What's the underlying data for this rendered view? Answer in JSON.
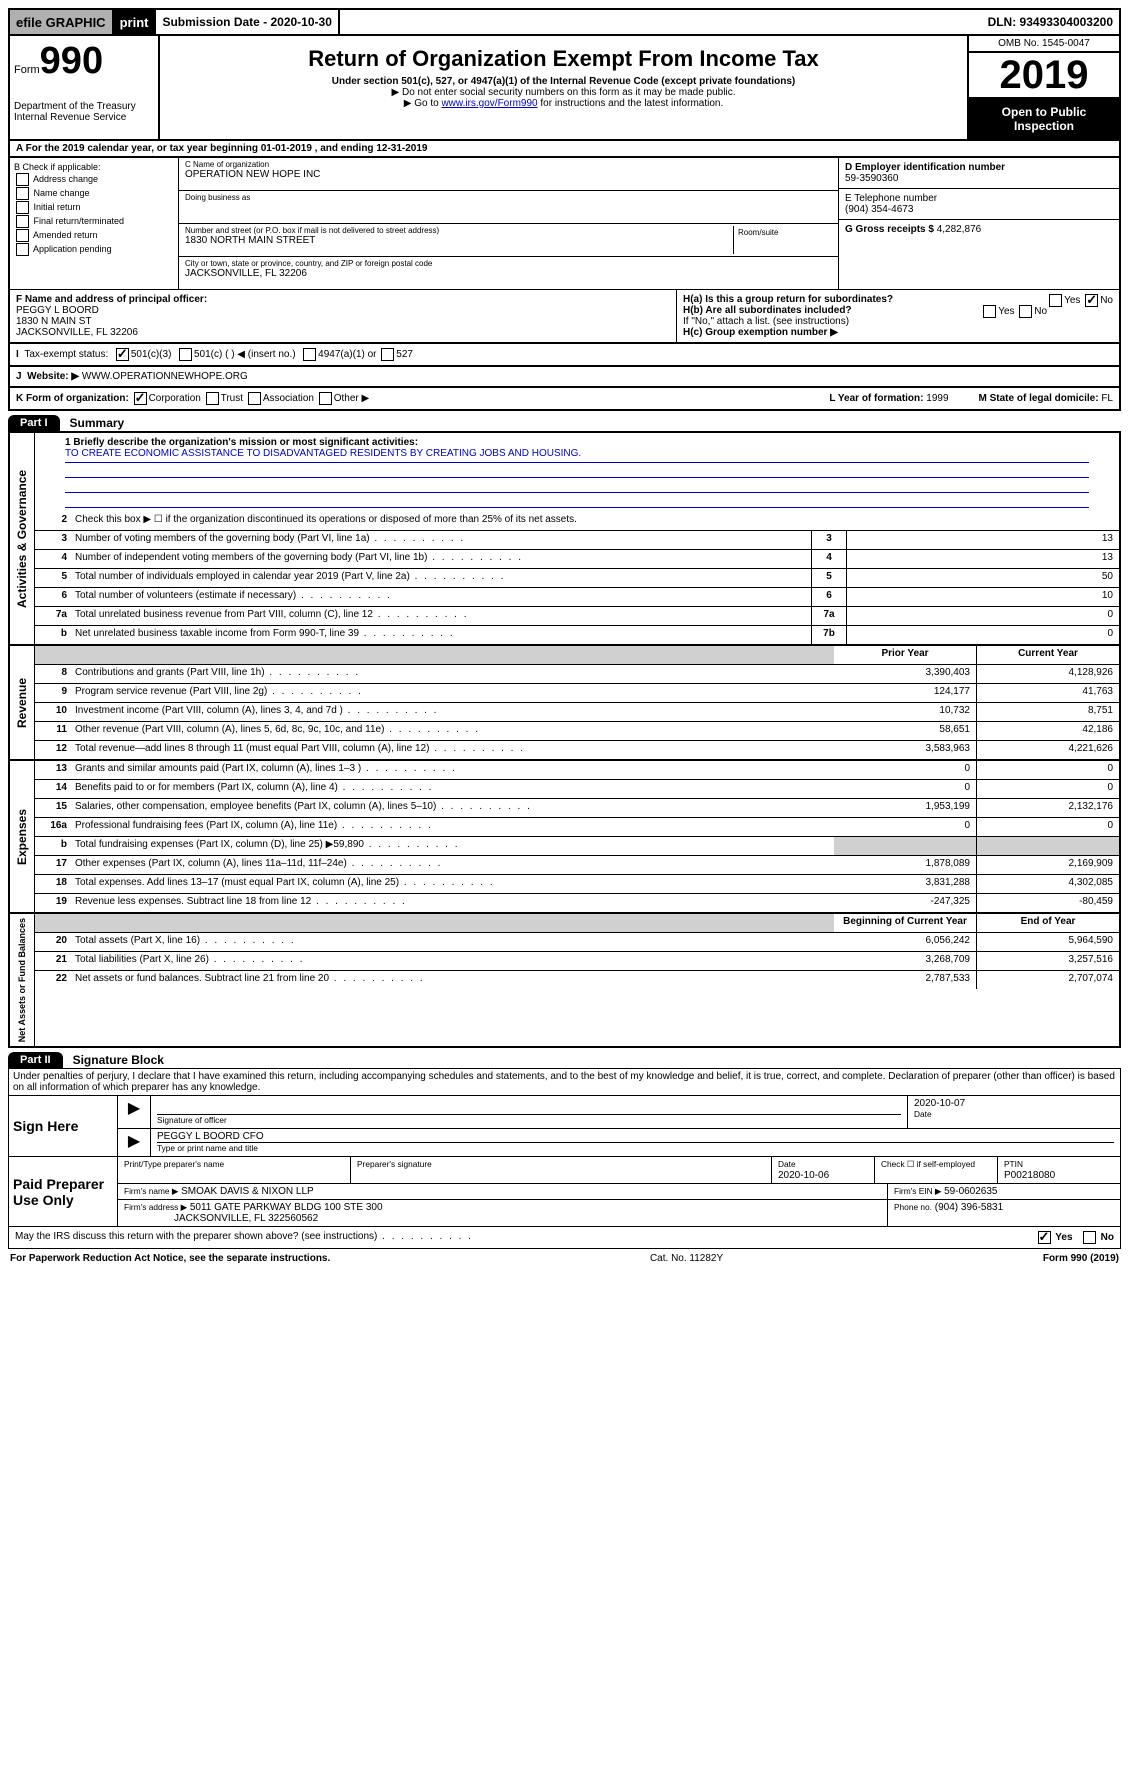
{
  "topbar": {
    "efile": "efile GRAPHIC",
    "print": "print",
    "subdate_label": "Submission Date - 2020-10-30",
    "dln": "DLN: 93493304003200"
  },
  "header": {
    "form_label": "Form",
    "form_num": "990",
    "dept": "Department of the Treasury Internal Revenue Service",
    "title": "Return of Organization Exempt From Income Tax",
    "sub1": "Under section 501(c), 527, or 4947(a)(1) of the Internal Revenue Code (except private foundations)",
    "sub2": "▶ Do not enter social security numbers on this form as it may be made public.",
    "sub3_pre": "▶ Go to ",
    "sub3_link": "www.irs.gov/Form990",
    "sub3_post": " for instructions and the latest information.",
    "omb": "OMB No. 1545-0047",
    "year": "2019",
    "open": "Open to Public Inspection"
  },
  "rowA": "A For the 2019 calendar year, or tax year beginning 01-01-2019    , and ending 12-31-2019",
  "boxB": {
    "label": "B Check if applicable:",
    "opts": [
      "Address change",
      "Name change",
      "Initial return",
      "Final return/terminated",
      "Amended return",
      "Application pending"
    ]
  },
  "boxC": {
    "name_lbl": "C Name of organization",
    "name": "OPERATION NEW HOPE INC",
    "dba_lbl": "Doing business as",
    "street_lbl": "Number and street (or P.O. box if mail is not delivered to street address)",
    "room_lbl": "Room/suite",
    "street": "1830 NORTH MAIN STREET",
    "city_lbl": "City or town, state or province, country, and ZIP or foreign postal code",
    "city": "JACKSONVILLE, FL  32206"
  },
  "boxD": {
    "lbl": "D Employer identification number",
    "val": "59-3590360"
  },
  "boxE": {
    "lbl": "E Telephone number",
    "val": "(904) 354-4673"
  },
  "boxG": {
    "lbl": "G Gross receipts $",
    "val": "4,282,876"
  },
  "boxF": {
    "lbl": "F Name and address of principal officer:",
    "name": "PEGGY L BOORD",
    "addr1": "1830 N MAIN ST",
    "addr2": "JACKSONVILLE, FL  32206"
  },
  "boxH": {
    "a": "H(a)  Is this a group return for subordinates?",
    "b": "H(b)  Are all subordinates included?",
    "b2": "If \"No,\" attach a list. (see instructions)",
    "c": "H(c)  Group exemption number ▶",
    "yes": "Yes",
    "no": "No"
  },
  "rowI": {
    "lbl": "Tax-exempt status:",
    "o1": "501(c)(3)",
    "o2": "501(c) (  ) ◀ (insert no.)",
    "o3": "4947(a)(1) or",
    "o4": "527"
  },
  "rowJ": {
    "lbl": "Website: ▶",
    "val": "WWW.OPERATIONNEWHOPE.ORG"
  },
  "rowK": {
    "lbl": "K Form of organization:",
    "o1": "Corporation",
    "o2": "Trust",
    "o3": "Association",
    "o4": "Other ▶",
    "year_lbl": "L Year of formation:",
    "year": "1999",
    "state_lbl": "M State of legal domicile:",
    "state": "FL"
  },
  "part1": {
    "tab": "Part I",
    "title": "Summary"
  },
  "summary": {
    "l1_lbl": "1  Briefly describe the organization's mission or most significant activities:",
    "l1_val": "TO CREATE ECONOMIC ASSISTANCE TO DISADVANTAGED RESIDENTS BY CREATING JOBS AND HOUSING.",
    "l2": "Check this box ▶ ☐  if the organization discontinued its operations or disposed of more than 25% of its net assets.",
    "rows_gov": [
      {
        "n": "3",
        "d": "Number of voting members of the governing body (Part VI, line 1a)",
        "r": "3",
        "v": "13"
      },
      {
        "n": "4",
        "d": "Number of independent voting members of the governing body (Part VI, line 1b)",
        "r": "4",
        "v": "13"
      },
      {
        "n": "5",
        "d": "Total number of individuals employed in calendar year 2019 (Part V, line 2a)",
        "r": "5",
        "v": "50"
      },
      {
        "n": "6",
        "d": "Total number of volunteers (estimate if necessary)",
        "r": "6",
        "v": "10"
      },
      {
        "n": "7a",
        "d": "Total unrelated business revenue from Part VIII, column (C), line 12",
        "r": "7a",
        "v": "0"
      },
      {
        "n": "b",
        "d": "Net unrelated business taxable income from Form 990-T, line 39",
        "r": "7b",
        "v": "0"
      }
    ],
    "hdr_prior": "Prior Year",
    "hdr_curr": "Current Year",
    "rows_rev": [
      {
        "n": "8",
        "d": "Contributions and grants (Part VIII, line 1h)",
        "p": "3,390,403",
        "c": "4,128,926"
      },
      {
        "n": "9",
        "d": "Program service revenue (Part VIII, line 2g)",
        "p": "124,177",
        "c": "41,763"
      },
      {
        "n": "10",
        "d": "Investment income (Part VIII, column (A), lines 3, 4, and 7d )",
        "p": "10,732",
        "c": "8,751"
      },
      {
        "n": "11",
        "d": "Other revenue (Part VIII, column (A), lines 5, 6d, 8c, 9c, 10c, and 11e)",
        "p": "58,651",
        "c": "42,186"
      },
      {
        "n": "12",
        "d": "Total revenue—add lines 8 through 11 (must equal Part VIII, column (A), line 12)",
        "p": "3,583,963",
        "c": "4,221,626"
      }
    ],
    "rows_exp": [
      {
        "n": "13",
        "d": "Grants and similar amounts paid (Part IX, column (A), lines 1–3 )",
        "p": "0",
        "c": "0"
      },
      {
        "n": "14",
        "d": "Benefits paid to or for members (Part IX, column (A), line 4)",
        "p": "0",
        "c": "0"
      },
      {
        "n": "15",
        "d": "Salaries, other compensation, employee benefits (Part IX, column (A), lines 5–10)",
        "p": "1,953,199",
        "c": "2,132,176"
      },
      {
        "n": "16a",
        "d": "Professional fundraising fees (Part IX, column (A), line 11e)",
        "p": "0",
        "c": "0"
      },
      {
        "n": "b",
        "d": "Total fundraising expenses (Part IX, column (D), line 25) ▶59,890",
        "p": "",
        "c": "",
        "shade": true
      },
      {
        "n": "17",
        "d": "Other expenses (Part IX, column (A), lines 11a–11d, 11f–24e)",
        "p": "1,878,089",
        "c": "2,169,909"
      },
      {
        "n": "18",
        "d": "Total expenses. Add lines 13–17 (must equal Part IX, column (A), line 25)",
        "p": "3,831,288",
        "c": "4,302,085"
      },
      {
        "n": "19",
        "d": "Revenue less expenses. Subtract line 18 from line 12",
        "p": "-247,325",
        "c": "-80,459"
      }
    ],
    "hdr_beg": "Beginning of Current Year",
    "hdr_end": "End of Year",
    "rows_net": [
      {
        "n": "20",
        "d": "Total assets (Part X, line 16)",
        "p": "6,056,242",
        "c": "5,964,590"
      },
      {
        "n": "21",
        "d": "Total liabilities (Part X, line 26)",
        "p": "3,268,709",
        "c": "3,257,516"
      },
      {
        "n": "22",
        "d": "Net assets or fund balances. Subtract line 21 from line 20",
        "p": "2,787,533",
        "c": "2,707,074"
      }
    ],
    "side_gov": "Activities & Governance",
    "side_rev": "Revenue",
    "side_exp": "Expenses",
    "side_net": "Net Assets or Fund Balances"
  },
  "part2": {
    "tab": "Part II",
    "title": "Signature Block"
  },
  "decl": "Under penalties of perjury, I declare that I have examined this return, including accompanying schedules and statements, and to the best of my knowledge and belief, it is true, correct, and complete. Declaration of preparer (other than officer) is based on all information of which preparer has any knowledge.",
  "sign": {
    "here": "Sign Here",
    "sig_lbl": "Signature of officer",
    "date": "2020-10-07",
    "date_lbl": "Date",
    "name": "PEGGY L BOORD CFO",
    "name_lbl": "Type or print name and title"
  },
  "paid": {
    "here": "Paid Preparer Use Only",
    "c1": "Print/Type preparer's name",
    "c2": "Preparer's signature",
    "c3_lbl": "Date",
    "c3": "2020-10-06",
    "c4": "Check ☐ if self-employed",
    "c5_lbl": "PTIN",
    "c5": "P00218080",
    "firm_lbl": "Firm's name    ▶",
    "firm": "SMOAK DAVIS & NIXON LLP",
    "ein_lbl": "Firm's EIN ▶",
    "ein": "59-0602635",
    "addr_lbl": "Firm's address ▶",
    "addr": "5011 GATE PARKWAY BLDG 100 STE 300",
    "addr2": "JACKSONVILLE, FL  322560562",
    "phone_lbl": "Phone no.",
    "phone": "(904) 396-5831"
  },
  "discuss": "May the IRS discuss this return with the preparer shown above? (see instructions)",
  "yes": "Yes",
  "no": "No",
  "foot": {
    "left": "For Paperwork Reduction Act Notice, see the separate instructions.",
    "mid": "Cat. No. 11282Y",
    "right": "Form 990 (2019)"
  }
}
